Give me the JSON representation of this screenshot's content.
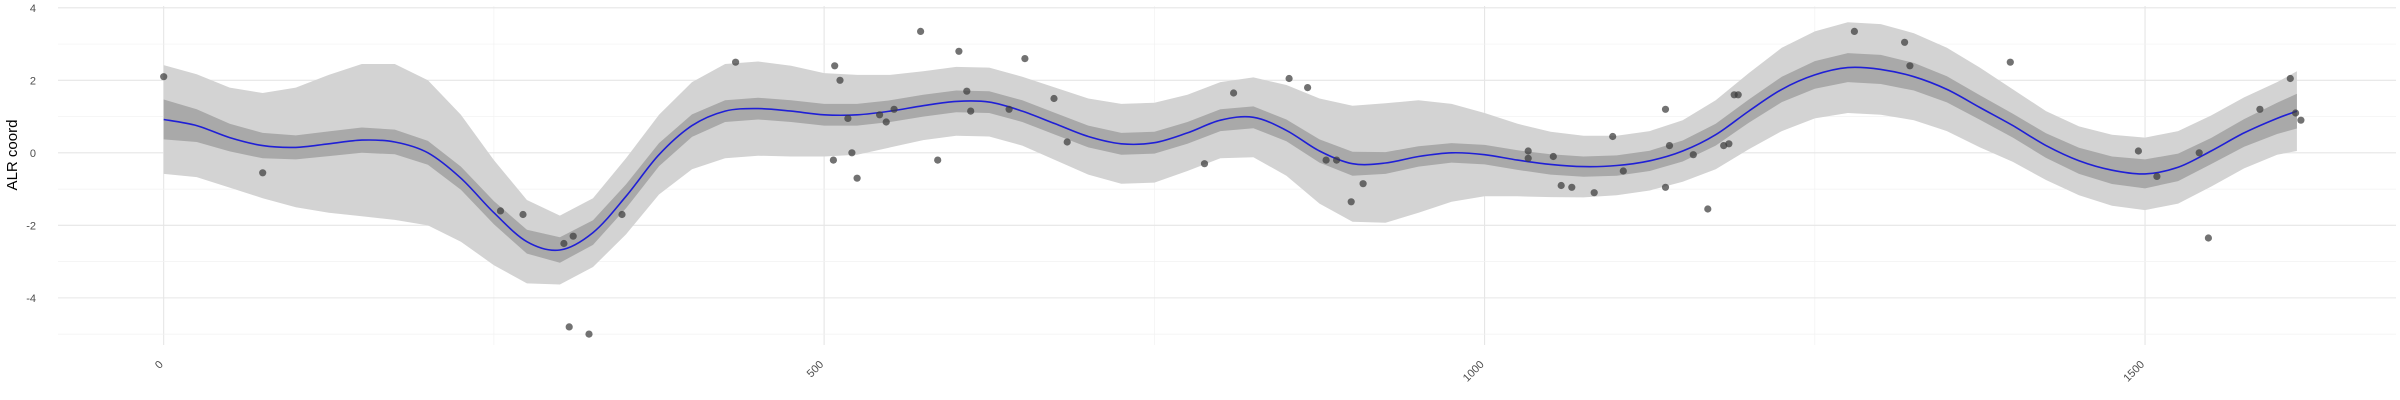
{
  "chart_data": {
    "type": "line",
    "title": "",
    "xlabel": "",
    "ylabel": "ALR coord",
    "xlim": [
      -80,
      1690
    ],
    "ylim": [
      -5.3,
      4.05
    ],
    "x_ticks": [
      0,
      500,
      1000,
      1500
    ],
    "x_tick_labels": [
      "0",
      "500",
      "1000",
      "1500"
    ],
    "y_ticks": [
      4,
      2,
      0,
      -2,
      -4
    ],
    "y_tick_labels": [
      "4",
      "2",
      "0",
      "-2",
      "-4"
    ],
    "grid": true,
    "legend": "none",
    "colors": {
      "line": "#1f1fd6",
      "band_inner": "#a9a9a9",
      "band_outer": "#d3d3d3",
      "points": "#3b3b3b",
      "grid_major": "#e6e6e6",
      "grid_minor": "#f2f2f2"
    },
    "series": [
      {
        "kind": "fit",
        "x": [
          0,
          25,
          50,
          75,
          100,
          125,
          150,
          175,
          200,
          225,
          250,
          275,
          300,
          325,
          350,
          375,
          400,
          425,
          450,
          475,
          500,
          525,
          550,
          575,
          600,
          625,
          650,
          675,
          700,
          725,
          750,
          775,
          800,
          825,
          850,
          875,
          900,
          925,
          950,
          975,
          1000,
          1025,
          1050,
          1075,
          1100,
          1125,
          1150,
          1175,
          1200,
          1225,
          1250,
          1275,
          1300,
          1325,
          1350,
          1375,
          1400,
          1425,
          1450,
          1475,
          1500,
          1525,
          1550,
          1575,
          1600,
          1615
        ],
        "y": [
          0.92,
          0.75,
          0.42,
          0.2,
          0.15,
          0.25,
          0.35,
          0.3,
          0.0,
          -0.7,
          -1.65,
          -2.45,
          -2.68,
          -2.2,
          -1.2,
          -0.05,
          0.75,
          1.15,
          1.22,
          1.15,
          1.05,
          1.05,
          1.15,
          1.3,
          1.42,
          1.4,
          1.15,
          0.8,
          0.45,
          0.25,
          0.28,
          0.55,
          0.9,
          0.98,
          0.62,
          0.05,
          -0.3,
          -0.28,
          -0.1,
          0.0,
          -0.05,
          -0.2,
          -0.32,
          -0.38,
          -0.35,
          -0.22,
          0.05,
          0.5,
          1.15,
          1.75,
          2.15,
          2.35,
          2.3,
          2.1,
          1.75,
          1.25,
          0.75,
          0.2,
          -0.22,
          -0.48,
          -0.58,
          -0.4,
          0.05,
          0.55,
          0.95,
          1.15
        ],
        "inner_band_halfwidth": [
          0.55,
          0.45,
          0.38,
          0.35,
          0.33,
          0.34,
          0.35,
          0.34,
          0.33,
          0.32,
          0.32,
          0.33,
          0.35,
          0.34,
          0.33,
          0.32,
          0.31,
          0.3,
          0.3,
          0.3,
          0.3,
          0.3,
          0.3,
          0.3,
          0.3,
          0.3,
          0.3,
          0.3,
          0.3,
          0.3,
          0.3,
          0.3,
          0.3,
          0.3,
          0.3,
          0.32,
          0.33,
          0.3,
          0.28,
          0.27,
          0.27,
          0.27,
          0.28,
          0.28,
          0.28,
          0.28,
          0.29,
          0.3,
          0.32,
          0.35,
          0.38,
          0.4,
          0.4,
          0.38,
          0.36,
          0.34,
          0.33,
          0.34,
          0.36,
          0.38,
          0.4,
          0.38,
          0.36,
          0.38,
          0.43,
          0.48
        ],
        "outer_band_halfwidth": [
          1.5,
          1.42,
          1.38,
          1.45,
          1.65,
          1.9,
          2.1,
          2.15,
          2.0,
          1.75,
          1.45,
          1.15,
          0.95,
          0.95,
          1.05,
          1.1,
          1.2,
          1.3,
          1.3,
          1.25,
          1.15,
          1.1,
          1.0,
          0.95,
          0.95,
          0.95,
          0.95,
          1.0,
          1.05,
          1.1,
          1.1,
          1.05,
          1.05,
          1.1,
          1.25,
          1.45,
          1.6,
          1.65,
          1.55,
          1.35,
          1.15,
          1.0,
          0.9,
          0.85,
          0.82,
          0.82,
          0.85,
          0.95,
          1.05,
          1.15,
          1.2,
          1.25,
          1.25,
          1.2,
          1.15,
          1.1,
          1.0,
          0.95,
          0.95,
          0.98,
          1.0,
          1.0,
          0.98,
          0.98,
          1.0,
          1.1
        ]
      },
      {
        "kind": "points",
        "x": [
          0,
          75,
          255,
          272,
          303,
          310,
          307,
          322,
          347,
          433,
          508,
          512,
          518,
          521,
          507,
          525,
          542,
          547,
          553,
          573,
          586,
          602,
          608,
          611,
          640,
          652,
          674,
          684,
          788,
          810,
          852,
          866,
          880,
          888,
          899,
          908,
          1033,
          1033,
          1052,
          1058,
          1066,
          1083,
          1097,
          1105,
          1137,
          1137,
          1140,
          1158,
          1169,
          1181,
          1185,
          1189,
          1192,
          1280,
          1318,
          1322,
          1398,
          1495,
          1509,
          1541,
          1548,
          1587,
          1610,
          1614,
          1618
        ],
        "y": [
          2.1,
          -0.55,
          -1.6,
          -1.7,
          -2.5,
          -2.3,
          -4.8,
          -5.0,
          -1.7,
          2.5,
          2.4,
          2.0,
          0.95,
          0.0,
          -0.2,
          -0.7,
          1.05,
          0.85,
          1.2,
          3.35,
          -0.2,
          2.8,
          1.7,
          1.15,
          1.2,
          2.6,
          1.5,
          0.3,
          -0.3,
          1.65,
          2.05,
          1.8,
          -0.2,
          -0.2,
          -1.35,
          -0.85,
          0.05,
          -0.15,
          -0.1,
          -0.9,
          -0.95,
          -1.1,
          0.45,
          -0.5,
          1.2,
          -0.95,
          0.2,
          -0.05,
          -1.55,
          0.2,
          0.25,
          1.6,
          1.6,
          3.35,
          3.05,
          2.4,
          2.5,
          0.05,
          -0.65,
          0.0,
          -2.35,
          1.2,
          2.05,
          1.1,
          0.9
        ]
      }
    ]
  }
}
